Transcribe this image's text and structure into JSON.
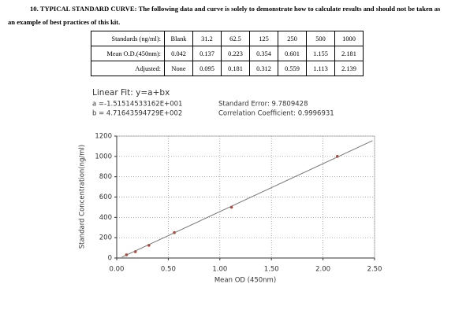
{
  "heading": {
    "label": "10. TYPICAL STANDARD CURVE:",
    "text": "The following data and curve is solely to demonstrate how to calculate results and should not be taken as an example of best practices of this kit."
  },
  "table": {
    "rows": [
      [
        "Standards (ng/ml):",
        "Blank",
        31.2,
        62.5,
        125,
        250,
        500,
        1000
      ],
      [
        "Mean O.D.(450nm):",
        0.042,
        0.137,
        0.223,
        0.354,
        0.601,
        1.155,
        2.181
      ],
      [
        "Adjusted:",
        "None",
        0.095,
        0.181,
        0.312,
        0.559,
        1.113,
        2.139
      ]
    ]
  },
  "chart_data": {
    "type": "scatter",
    "title": "Linear Fit: y=a+bx",
    "annotations": [
      "a =-1.51514533162E+001",
      "b = 4.71643594729E+002",
      "Standard Error: 9.7809428",
      "Correlation Coefficient: 0.9996931"
    ],
    "x_label": "Mean OD (450nm)",
    "y_label": "Standard Concentration(ng/ml)",
    "xlim": [
      0,
      2.5
    ],
    "ylim": [
      0,
      1200
    ],
    "xticks": [
      {
        "value": 0,
        "label": "0.00"
      },
      {
        "value": 0.5,
        "label": "0.50"
      },
      {
        "value": 1,
        "label": "1.00"
      },
      {
        "value": 1.5,
        "label": "1.50"
      },
      {
        "value": 2,
        "label": "2.00"
      },
      {
        "value": 2.5,
        "label": "2.50"
      }
    ],
    "yticks": [
      0,
      200,
      400,
      600,
      800,
      1000,
      1200
    ],
    "grid": true,
    "series": [
      {
        "name": "Standards",
        "color": "#c0392b",
        "x": [
          0.095,
          0.181,
          0.312,
          0.559,
          1.113,
          2.139
        ],
        "values": [
          31.2,
          62.5,
          125,
          250,
          500,
          1000
        ]
      },
      {
        "name": "Linear Fit",
        "color": "#777777",
        "line": true,
        "x": [
          0.05,
          2.48
        ],
        "values": [
          8,
          1155
        ]
      }
    ]
  }
}
